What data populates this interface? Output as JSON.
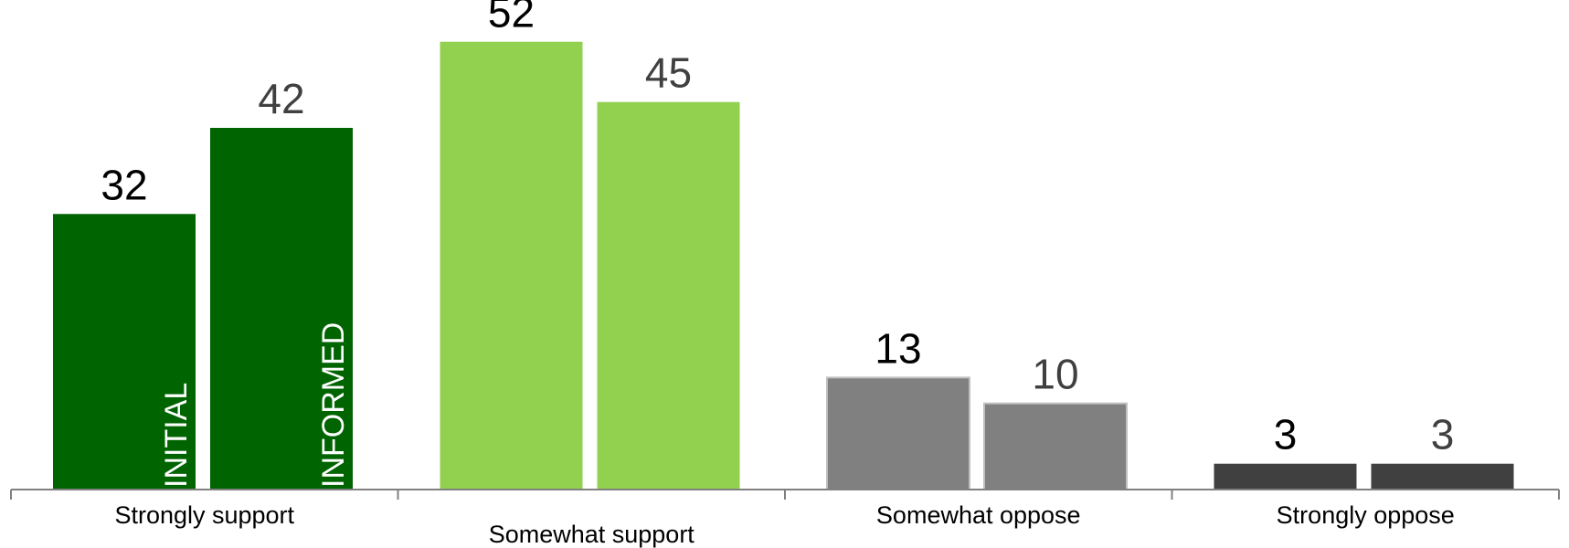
{
  "chart_data": {
    "type": "bar",
    "categories": [
      "Strongly support",
      "Somewhat support",
      "Somewhat oppose",
      "Strongly oppose"
    ],
    "series": [
      {
        "name": "INITIAL",
        "values": [
          32,
          52,
          13,
          3
        ]
      },
      {
        "name": "INFORMED",
        "values": [
          42,
          45,
          10,
          3
        ]
      }
    ],
    "ylim": [
      0,
      56
    ],
    "grid": false,
    "legend": "none",
    "colors": {
      "category_fills": [
        "#006400",
        "#92d050",
        "#808080",
        "#404040"
      ],
      "axis": "#808080",
      "label_first": "#000000",
      "label_second": "#404040"
    }
  }
}
